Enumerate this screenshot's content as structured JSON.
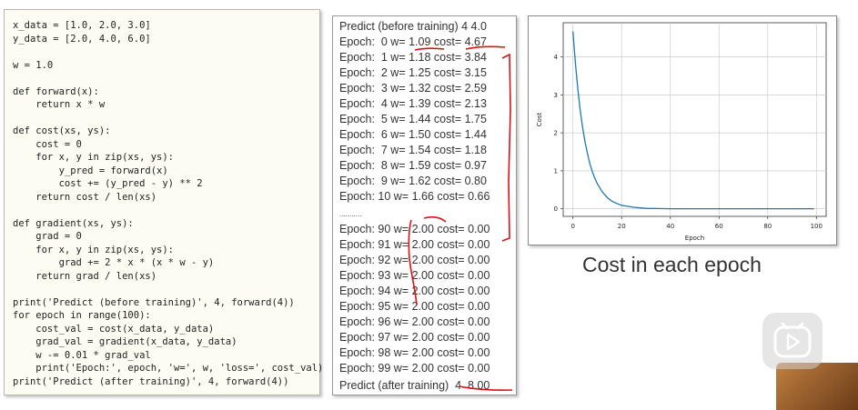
{
  "code_lines": [
    "x_data = [1.0, 2.0, 3.0]",
    "y_data = [2.0, 4.0, 6.0]",
    "",
    "w = 1.0",
    "",
    "def forward(x):",
    "    return x * w",
    "",
    "def cost(xs, ys):",
    "    cost = 0",
    "    for x, y in zip(xs, ys):",
    "        y_pred = forward(x)",
    "        cost += (y_pred - y) ** 2",
    "    return cost / len(xs)",
    "",
    "def gradient(xs, ys):",
    "    grad = 0",
    "    for x, y in zip(xs, ys):",
    "        grad += 2 * x * (x * w - y)",
    "    return grad / len(xs)",
    "",
    "print('Predict (before training)', 4, forward(4))",
    "for epoch in range(100):",
    "    cost_val = cost(x_data, y_data)",
    "    grad_val = gradient(x_data, y_data)",
    "    w -= 0.01 * grad_val",
    "    print('Epoch:', epoch, 'w=', w, 'loss=', cost_val)",
    "print('Predict (after training)', 4, forward(4))"
  ],
  "output_lines": [
    "Predict (before training) 4 4.0",
    "Epoch:  0 w= 1.09 cost= 4.67",
    "Epoch:  1 w= 1.18 cost= 3.84",
    "Epoch:  2 w= 1.25 cost= 3.15",
    "Epoch:  3 w= 1.32 cost= 2.59",
    "Epoch:  4 w= 1.39 cost= 2.13",
    "Epoch:  5 w= 1.44 cost= 1.75",
    "Epoch:  6 w= 1.50 cost= 1.44",
    "Epoch:  7 w= 1.54 cost= 1.18",
    "Epoch:  8 w= 1.59 cost= 0.97",
    "Epoch:  9 w= 1.62 cost= 0.80",
    "Epoch: 10 w= 1.66 cost= 0.66",
    "...........",
    "Epoch: 90 w= 2.00 cost= 0.00",
    "Epoch: 91 w= 2.00 cost= 0.00",
    "Epoch: 92 w= 2.00 cost= 0.00",
    "Epoch: 93 w= 2.00 cost= 0.00",
    "Epoch: 94 w= 2.00 cost= 0.00",
    "Epoch: 95 w= 2.00 cost= 0.00",
    "Epoch: 96 w= 2.00 cost= 0.00",
    "Epoch: 97 w= 2.00 cost= 0.00",
    "Epoch: 98 w= 2.00 cost= 0.00",
    "Epoch: 99 w= 2.00 cost= 0.00",
    "Predict (after training)  4  8.00"
  ],
  "caption": "Cost in each epoch",
  "chart_data": {
    "type": "line",
    "xlabel": "Epoch",
    "ylabel": "Cost",
    "xlim": [
      -4,
      104
    ],
    "ylim": [
      -0.2,
      4.9
    ],
    "xticks": [
      0,
      20,
      40,
      60,
      80,
      100
    ],
    "yticks": [
      0,
      1,
      2,
      3,
      4
    ],
    "grid": true,
    "line_color": "#1f77b4",
    "series": [
      {
        "x": [
          0,
          1,
          2,
          3,
          4,
          5,
          6,
          7,
          8,
          9,
          10,
          12,
          14,
          16,
          18,
          20,
          25,
          30,
          35,
          40,
          50,
          60,
          70,
          80,
          90,
          99
        ],
        "values": [
          4.67,
          3.84,
          3.15,
          2.59,
          2.13,
          1.75,
          1.44,
          1.18,
          0.97,
          0.8,
          0.66,
          0.45,
          0.3,
          0.2,
          0.14,
          0.09,
          0.04,
          0.01,
          0.005,
          0.002,
          0.0,
          0.0,
          0.0,
          0.0,
          0.0,
          0.0
        ]
      }
    ]
  },
  "play_icon": "play-icon",
  "annotation_color": "#d11111"
}
